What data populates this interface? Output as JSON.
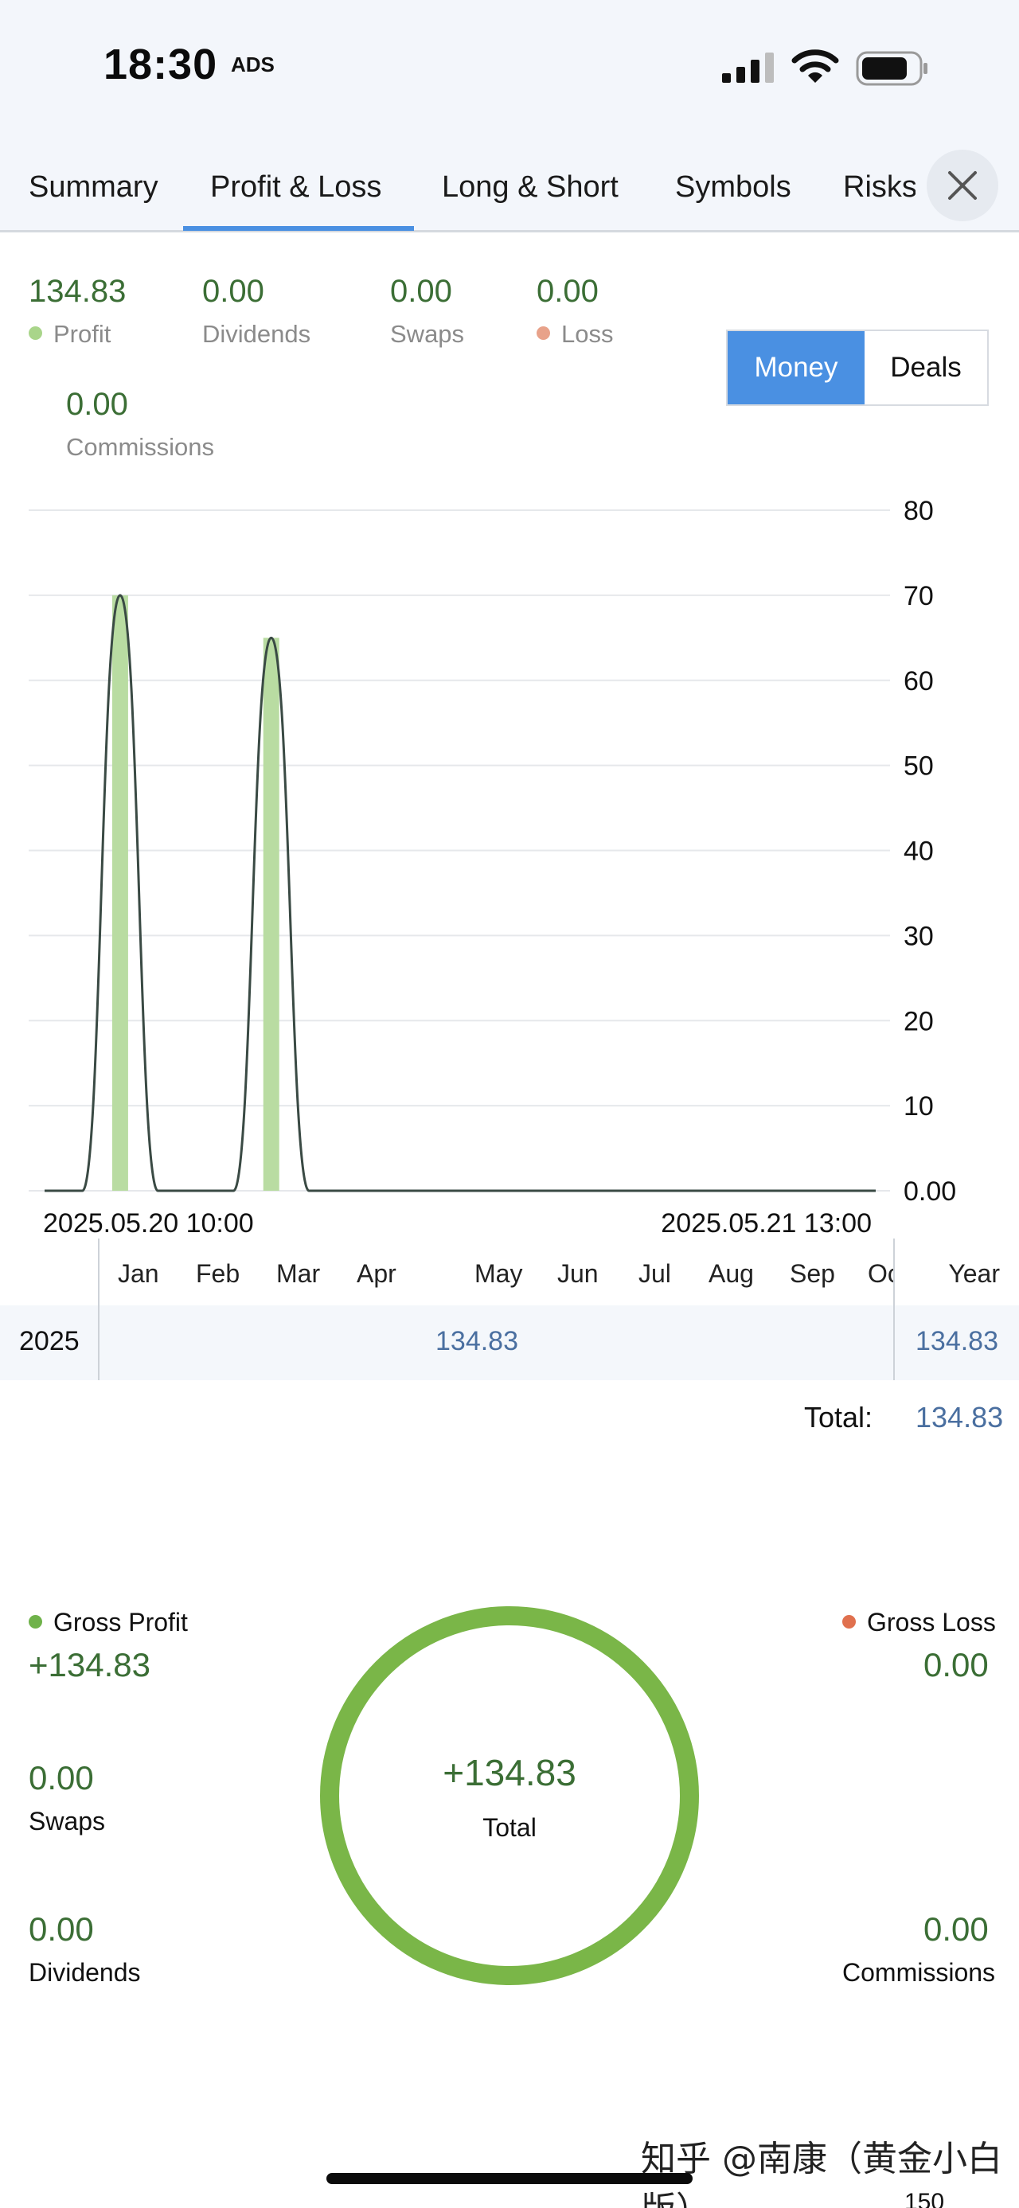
{
  "status_bar": {
    "time": "18:30",
    "ads_label": "ADS",
    "icons": [
      "signal-icon",
      "wifi-icon",
      "battery-icon"
    ]
  },
  "tabs": [
    {
      "label": "Summary",
      "active": false
    },
    {
      "label": "Profit & Loss",
      "active": true
    },
    {
      "label": "Long & Short",
      "active": false
    },
    {
      "label": "Symbols",
      "active": false
    },
    {
      "label": "Risks",
      "active": false
    }
  ],
  "close_icon": "close-icon",
  "metrics": {
    "profit": {
      "value": "134.83",
      "label": "Profit"
    },
    "dividends": {
      "value": "0.00",
      "label": "Dividends"
    },
    "swaps": {
      "value": "0.00",
      "label": "Swaps"
    },
    "loss": {
      "value": "0.00",
      "label": "Loss"
    },
    "commissions": {
      "value": "0.00",
      "label": "Commissions"
    }
  },
  "toggle": {
    "money": "Money",
    "deals": "Deals",
    "selected": "Money"
  },
  "colors": {
    "accent": "#4a90e2",
    "profit_green": "#3b6e35",
    "profit_dot": "#a9d58a",
    "loss_dot": "#e8a28a",
    "gross_profit_dot": "#6fb24a",
    "gross_loss_dot": "#e0704e",
    "ring": "#7ab648",
    "bar_fill": "#b9dca2",
    "value_blue": "#4a6fa0"
  },
  "chart_data": {
    "type": "line",
    "y_ticks": [
      "80",
      "70",
      "60",
      "50",
      "40",
      "30",
      "20",
      "10",
      "0.00"
    ],
    "ylim": [
      0,
      80
    ],
    "x_start_label": "2025.05.20 10:00",
    "x_end_label": "2025.05.21 13:00",
    "bars": [
      {
        "value": 70
      },
      {
        "value": 65
      }
    ],
    "series": [
      {
        "points": [
          0,
          0,
          70,
          0,
          0,
          0,
          65,
          0,
          0,
          0,
          0,
          0,
          0,
          0,
          0,
          0,
          0,
          0,
          0,
          0,
          0,
          0,
          0
        ]
      }
    ],
    "grid": true
  },
  "month_table": {
    "months": [
      "Jan",
      "Feb",
      "Mar",
      "Apr",
      "May",
      "Jun",
      "Jul",
      "Aug",
      "Sep",
      "Oct"
    ],
    "year_header": "Year",
    "rows": [
      {
        "label": "2025",
        "may": "134.83",
        "year": "134.83"
      }
    ],
    "total_label": "Total:",
    "total_value": "134.83"
  },
  "gross": {
    "gross_profit": {
      "label": "Gross Profit",
      "value": "+134.83"
    },
    "gross_loss": {
      "label": "Gross Loss",
      "value": "0.00"
    },
    "swaps": {
      "label": "Swaps",
      "value": "0.00"
    },
    "dividends": {
      "label": "Dividends",
      "value": "0.00"
    },
    "commissions": {
      "label": "Commissions",
      "value": "0.00"
    },
    "ring_value": "+134.83",
    "ring_label": "Total"
  },
  "watermark": "知乎 @南康（黄金小白版）",
  "partial_tick": "150"
}
